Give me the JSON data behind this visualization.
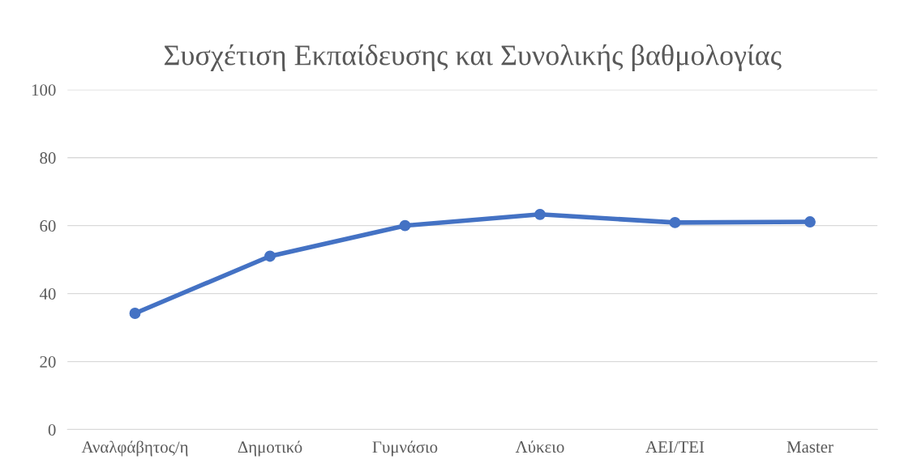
{
  "chart_data": {
    "type": "line",
    "title": "Συσχέτιση Εκπαίδευσης και Συνολικής βαθμολογίας",
    "categories": [
      "Αναλφάβητος/η",
      "Δημοτικό",
      "Γυμνάσιο",
      "Λύκειο",
      "ΑΕΙ/ΤΕΙ",
      "Master"
    ],
    "series": [
      {
        "color": "#4472c4",
        "values": [
          34.2,
          51,
          60,
          63.3,
          60.9,
          61.1
        ]
      }
    ],
    "ylim": [
      0,
      100
    ],
    "yticks": [
      0,
      20,
      40,
      60,
      80,
      100
    ],
    "grid": "y",
    "marker": "circle",
    "line_style": "solid",
    "legend": false
  }
}
